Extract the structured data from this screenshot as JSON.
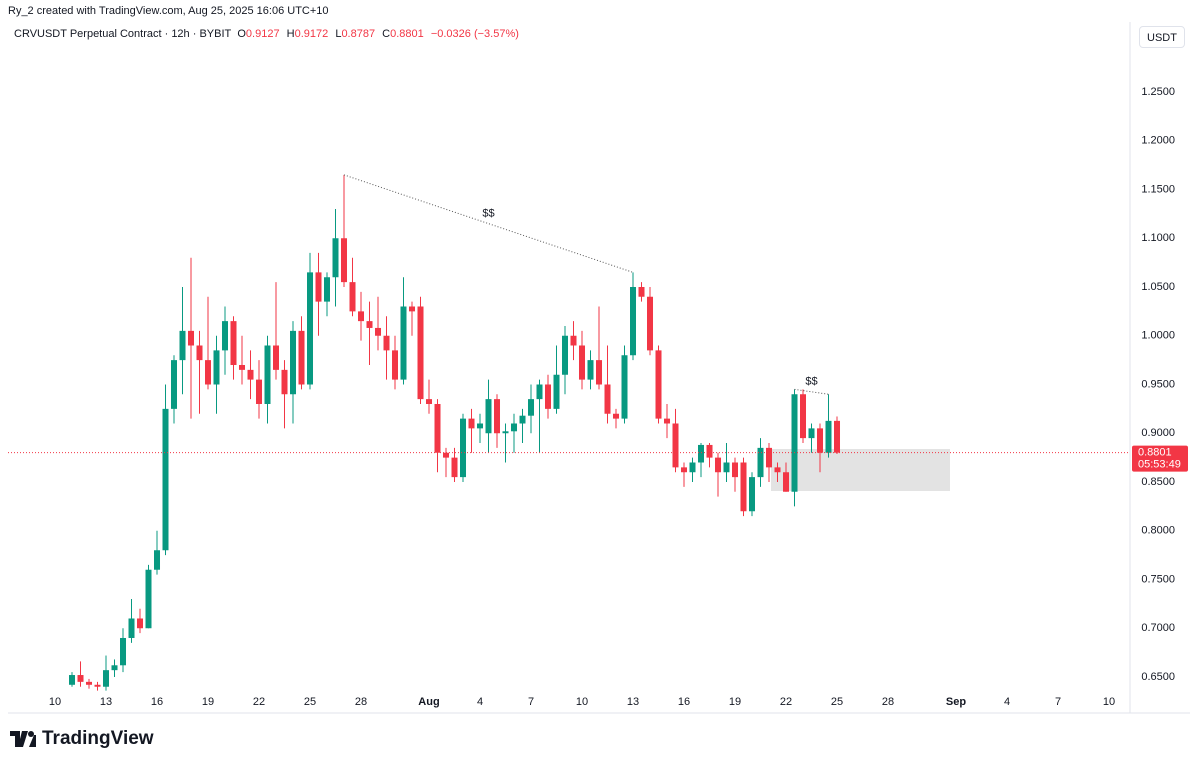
{
  "header": {
    "credit": "Ry_2 created with TradingView.com, Aug 25, 2025 16:06 UTC+10",
    "symbol": "CRVUSDT Perpetual Contract · 12h · BYBIT",
    "ohlc": [
      {
        "label": "O",
        "value": "0.9127"
      },
      {
        "label": "H",
        "value": "0.9172"
      },
      {
        "label": "L",
        "value": "0.8787"
      },
      {
        "label": "C",
        "value": "0.8801"
      }
    ],
    "change": "−0.0326 (−3.57%)",
    "currency": "USDT"
  },
  "chart_data": {
    "type": "candlestick",
    "up_color": "#089981",
    "down_color": "#f23645",
    "x": [
      1,
      1.5,
      2,
      2.5,
      3,
      3.5,
      4,
      4.5,
      5,
      5.5,
      6,
      6.5,
      7,
      7.5,
      8,
      8.5,
      9,
      9.5,
      10,
      10.5,
      11,
      11.5,
      12,
      12.5,
      13,
      13.5,
      14,
      14.5,
      15,
      15.5,
      16,
      16.5,
      17,
      17.5,
      18,
      18.5,
      19,
      19.5,
      20,
      20.5,
      21,
      21.5,
      22,
      22.5,
      23,
      23.5,
      24,
      24.5,
      25,
      25.5,
      26,
      26.5,
      27,
      27.5,
      28,
      28.5,
      29,
      29.5,
      30,
      30.5,
      31,
      31.5,
      32,
      32.5,
      33,
      33.5,
      34,
      34.5,
      35,
      35.5,
      36,
      36.5,
      37,
      37.5,
      38,
      38.5,
      39,
      39.5,
      40,
      40.5,
      41,
      41.5,
      42,
      42.5,
      43,
      43.5,
      44,
      44.5,
      45,
      45.5,
      46
    ],
    "open": [
      0.642,
      0.652,
      0.645,
      0.642,
      0.64,
      0.657,
      0.662,
      0.69,
      0.71,
      0.7,
      0.76,
      0.78,
      0.925,
      0.975,
      1.005,
      0.99,
      0.975,
      0.95,
      0.985,
      1.015,
      0.97,
      0.965,
      0.955,
      0.93,
      0.99,
      0.965,
      0.94,
      1.005,
      0.95,
      1.065,
      1.035,
      1.06,
      1.1,
      1.055,
      1.025,
      1.015,
      1.008,
      1.0,
      0.985,
      0.955,
      1.03,
      1.03,
      0.935,
      0.93,
      0.88,
      0.875,
      0.855,
      0.915,
      0.905,
      0.9,
      0.935,
      0.9,
      0.902,
      0.91,
      0.918,
      0.935,
      0.95,
      0.925,
      0.96,
      1.0,
      0.99,
      0.955,
      0.975,
      0.95,
      0.92,
      0.915,
      0.98,
      1.05,
      1.04,
      0.985,
      0.915,
      0.91,
      0.865,
      0.86,
      0.87,
      0.888,
      0.875,
      0.86,
      0.87,
      0.87,
      0.82,
      0.855,
      0.885,
      0.865,
      0.86,
      0.84,
      0.94,
      0.895,
      0.905,
      0.88,
      0.9127
    ],
    "high": [
      0.655,
      0.666,
      0.648,
      0.645,
      0.672,
      0.668,
      0.7,
      0.73,
      0.72,
      0.765,
      0.8,
      0.95,
      0.98,
      1.05,
      1.08,
      1.005,
      1.04,
      1.0,
      1.03,
      1.02,
      1.0,
      0.985,
      0.975,
      1.0,
      1.055,
      0.975,
      1.015,
      1.02,
      1.085,
      1.085,
      1.065,
      1.13,
      1.165,
      1.08,
      1.045,
      1.035,
      1.04,
      1.02,
      1.0,
      1.06,
      1.035,
      1.04,
      0.955,
      0.935,
      0.885,
      0.885,
      0.92,
      0.925,
      0.92,
      0.955,
      0.94,
      0.91,
      0.92,
      0.925,
      0.95,
      0.955,
      0.96,
      0.99,
      1.01,
      1.015,
      1.005,
      0.985,
      1.03,
      0.99,
      0.925,
      0.99,
      1.065,
      1.055,
      1.05,
      0.99,
      0.93,
      0.925,
      0.87,
      0.875,
      0.89,
      0.89,
      0.88,
      0.89,
      0.875,
      0.875,
      0.86,
      0.895,
      0.89,
      0.87,
      0.87,
      0.945,
      0.945,
      0.91,
      0.91,
      0.94,
      0.9172
    ],
    "low": [
      0.64,
      0.64,
      0.638,
      0.636,
      0.636,
      0.65,
      0.655,
      0.685,
      0.695,
      0.7,
      0.755,
      0.775,
      0.91,
      0.94,
      0.915,
      0.92,
      0.945,
      0.92,
      0.96,
      0.955,
      0.95,
      0.935,
      0.915,
      0.91,
      0.955,
      0.905,
      0.91,
      0.945,
      0.945,
      1.0,
      1.02,
      1.03,
      1.05,
      1.02,
      0.995,
      0.97,
      0.985,
      0.955,
      0.945,
      0.95,
      1.0,
      0.93,
      0.92,
      0.86,
      0.855,
      0.85,
      0.85,
      0.88,
      0.89,
      0.88,
      0.885,
      0.87,
      0.88,
      0.89,
      0.9,
      0.88,
      0.915,
      0.92,
      0.94,
      0.975,
      0.945,
      0.945,
      0.945,
      0.91,
      0.905,
      0.91,
      0.975,
      1.035,
      0.98,
      0.91,
      0.895,
      0.86,
      0.845,
      0.85,
      0.855,
      0.865,
      0.835,
      0.85,
      0.84,
      0.815,
      0.815,
      0.845,
      0.85,
      0.85,
      0.84,
      0.825,
      0.89,
      0.88,
      0.86,
      0.875,
      0.8787
    ],
    "close": [
      0.652,
      0.645,
      0.642,
      0.64,
      0.657,
      0.662,
      0.69,
      0.71,
      0.7,
      0.76,
      0.78,
      0.925,
      0.975,
      1.005,
      0.99,
      0.975,
      0.95,
      0.985,
      1.015,
      0.97,
      0.965,
      0.955,
      0.93,
      0.99,
      0.965,
      0.94,
      1.005,
      0.95,
      1.065,
      1.035,
      1.06,
      1.1,
      1.055,
      1.025,
      1.015,
      1.008,
      1.0,
      0.985,
      0.955,
      1.03,
      1.025,
      0.935,
      0.93,
      0.88,
      0.875,
      0.855,
      0.915,
      0.905,
      0.91,
      0.935,
      0.9,
      0.902,
      0.91,
      0.918,
      0.935,
      0.95,
      0.925,
      0.96,
      1.0,
      0.99,
      0.955,
      0.975,
      0.95,
      0.92,
      0.915,
      0.98,
      1.05,
      1.04,
      0.985,
      0.915,
      0.91,
      0.865,
      0.86,
      0.87,
      0.888,
      0.875,
      0.86,
      0.87,
      0.855,
      0.82,
      0.855,
      0.885,
      0.865,
      0.86,
      0.84,
      0.94,
      0.895,
      0.905,
      0.88,
      0.9127,
      0.8801
    ],
    "xlim": [
      -2.765,
      63.235
    ],
    "ylim": [
      0.6346,
      1.3218
    ],
    "yticks": [
      {
        "value": 0.65,
        "label": "0.6500"
      },
      {
        "value": 0.7,
        "label": "0.7000"
      },
      {
        "value": 0.75,
        "label": "0.7500"
      },
      {
        "value": 0.8,
        "label": "0.8000"
      },
      {
        "value": 0.85,
        "label": "0.8500"
      },
      {
        "value": 0.9,
        "label": "0.9000"
      },
      {
        "value": 0.95,
        "label": "0.9500"
      },
      {
        "value": 1.0,
        "label": "1.0000"
      },
      {
        "value": 1.05,
        "label": "1.0500"
      },
      {
        "value": 1.1,
        "label": "1.1000"
      },
      {
        "value": 1.15,
        "label": "1.1500"
      },
      {
        "value": 1.2,
        "label": "1.2000"
      },
      {
        "value": 1.25,
        "label": "1.2500"
      }
    ],
    "xticks": [
      {
        "value": 0,
        "label": "10"
      },
      {
        "value": 3,
        "label": "13"
      },
      {
        "value": 6,
        "label": "16"
      },
      {
        "value": 9,
        "label": "19"
      },
      {
        "value": 12,
        "label": "22"
      },
      {
        "value": 15,
        "label": "25"
      },
      {
        "value": 18,
        "label": "28"
      },
      {
        "value": 22,
        "label": "Aug"
      },
      {
        "value": 25,
        "label": "4"
      },
      {
        "value": 28,
        "label": "7"
      },
      {
        "value": 31,
        "label": "10"
      },
      {
        "value": 34,
        "label": "13"
      },
      {
        "value": 37,
        "label": "16"
      },
      {
        "value": 40,
        "label": "19"
      },
      {
        "value": 43,
        "label": "22"
      },
      {
        "value": 46,
        "label": "25"
      },
      {
        "value": 49,
        "label": "28"
      },
      {
        "value": 53,
        "label": "Sep"
      },
      {
        "value": 56,
        "label": "4"
      },
      {
        "value": 59,
        "label": "7"
      },
      {
        "value": 62,
        "label": "10"
      }
    ],
    "countdown": "05:53:49",
    "annotations": [
      "$$",
      "$$"
    ]
  },
  "footer": {
    "brand": "TradingView"
  }
}
